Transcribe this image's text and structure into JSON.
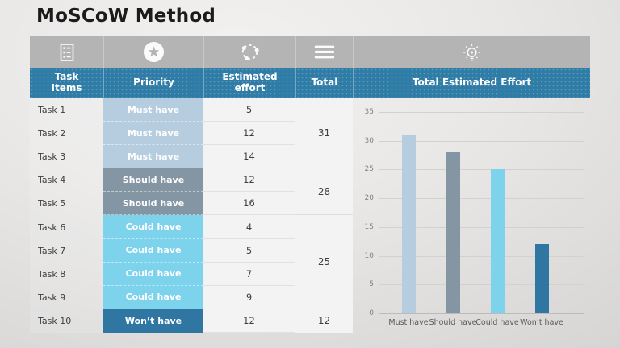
{
  "title": "MoSCoW Method",
  "colors": {
    "header_bg": "#2f7ca6",
    "icon_row_bg": "#b4b4b4",
    "must_have": "#b6cde0",
    "should_have": "#8495a3",
    "could_have": "#7dd2ec",
    "wont_have": "#2f77a2",
    "cell_bg": "#f3f3f3"
  },
  "icons": {
    "col1": "task-list-icon",
    "col2": "star-icon",
    "col3": "cycle-icon",
    "col4": "menu-icon",
    "col5": "lightbulb-icon"
  },
  "table": {
    "headers": [
      "Task Items",
      "Priority",
      "Estimated effort",
      "Total"
    ],
    "chart_header": "Total Estimated Effort",
    "rows": [
      {
        "task": "Task 1",
        "priority": "Must have",
        "key": "must_have",
        "effort": 5
      },
      {
        "task": "Task 2",
        "priority": "Must have",
        "key": "must_have",
        "effort": 12
      },
      {
        "task": "Task 3",
        "priority": "Must have",
        "key": "must_have",
        "effort": 14
      },
      {
        "task": "Task 4",
        "priority": "Should have",
        "key": "should_have",
        "effort": 12
      },
      {
        "task": "Task 5",
        "priority": "Should have",
        "key": "should_have",
        "effort": 16
      },
      {
        "task": "Task 6",
        "priority": "Could have",
        "key": "could_have",
        "effort": 4
      },
      {
        "task": "Task 7",
        "priority": "Could have",
        "key": "could_have",
        "effort": 5
      },
      {
        "task": "Task 8",
        "priority": "Could have",
        "key": "could_have",
        "effort": 7
      },
      {
        "task": "Task 9",
        "priority": "Could have",
        "key": "could_have",
        "effort": 9
      },
      {
        "task": "Task 10",
        "priority": "Won’t have",
        "key": "wont_have",
        "effort": 12
      }
    ],
    "totals": [
      {
        "value": 31,
        "rows": 3
      },
      {
        "value": 28,
        "rows": 2
      },
      {
        "value": 25,
        "rows": 4
      },
      {
        "value": 12,
        "rows": 1
      }
    ]
  },
  "chart_data": {
    "type": "bar",
    "title": "Total Estimated Effort",
    "categories": [
      "Must have",
      "Should have",
      "Could have",
      "Won’t have"
    ],
    "values": [
      31,
      28,
      25,
      12
    ],
    "colors": [
      "#b6cde0",
      "#8495a3",
      "#7dd2ec",
      "#2f77a2"
    ],
    "xlabel": "",
    "ylabel": "",
    "ylim": [
      0,
      35
    ],
    "ytick_step": 5,
    "grid": true,
    "legend": false
  }
}
